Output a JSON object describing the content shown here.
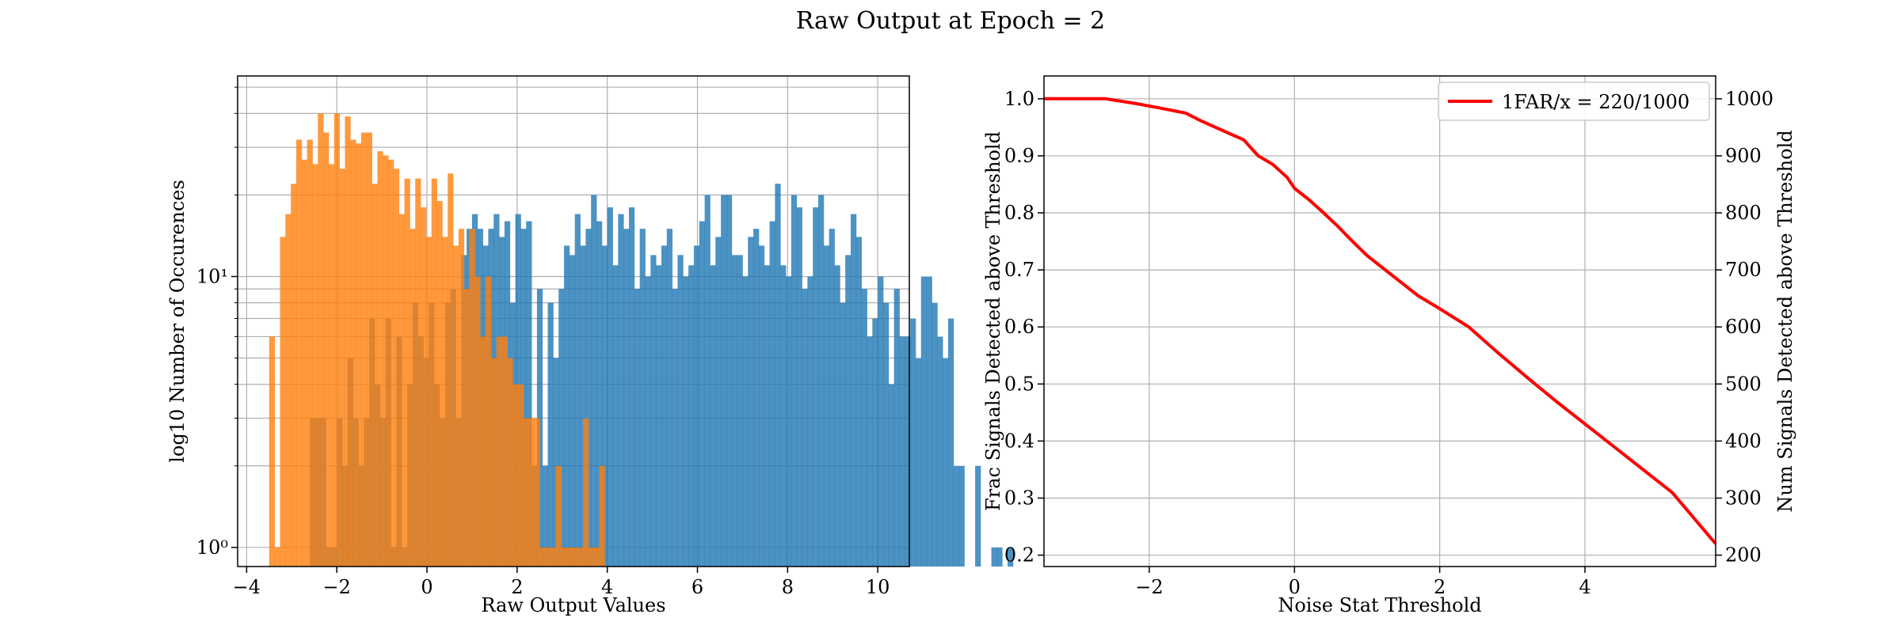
{
  "figure": {
    "title": "Raw Output at Epoch = 2"
  },
  "chart_data": [
    {
      "type": "histogram",
      "xlabel": "Raw Output Values",
      "ylabel": "log10 Number of Occurences",
      "xlim": [
        -4.2,
        10.7
      ],
      "ylim": [
        0.85,
        55
      ],
      "yscale": "log",
      "grid": true,
      "xticks": [
        -4,
        -2,
        0,
        2,
        4,
        6,
        8,
        10
      ],
      "yticks": [
        1,
        10
      ],
      "yticklabels": [
        "10⁰",
        "10¹"
      ],
      "bin_width": 0.12,
      "series": [
        {
          "name": "blue",
          "color": "#1f77b4",
          "start": -2.6,
          "counts": [
            3,
            3,
            3,
            1,
            1,
            3,
            2,
            5,
            3,
            2,
            3,
            7,
            4,
            3,
            7,
            1,
            6,
            1,
            4,
            8,
            6,
            5,
            8,
            4,
            3,
            8,
            9,
            3,
            12,
            15,
            17,
            15,
            13,
            15,
            17,
            14,
            16,
            8,
            17,
            15,
            16,
            2,
            9,
            2,
            8,
            5,
            9,
            13,
            12,
            17,
            13,
            15,
            20,
            16,
            13,
            18,
            11,
            17,
            15,
            18,
            9,
            15,
            10,
            12,
            11,
            13,
            15,
            9,
            12,
            10,
            11,
            13,
            16,
            20,
            11,
            14,
            20,
            20,
            12,
            12,
            10,
            14,
            15,
            13,
            11,
            16,
            22,
            11,
            10,
            20,
            18,
            9,
            10,
            18,
            20,
            13,
            15,
            11,
            8,
            12,
            17,
            14,
            9,
            6,
            7,
            10,
            8,
            4,
            9,
            6,
            6,
            7,
            5,
            10,
            10,
            8,
            6,
            5,
            7,
            2,
            2,
            0,
            0,
            2,
            0,
            0,
            1,
            1,
            0,
            1
          ]
        },
        {
          "name": "orange",
          "color": "#ff7f0e",
          "start": -3.5,
          "counts": [
            6,
            1,
            14,
            17,
            22,
            32,
            27,
            32,
            26,
            40,
            34,
            26,
            40,
            25,
            39,
            32,
            31,
            34,
            34,
            22,
            29,
            28,
            27,
            25,
            17,
            23,
            15,
            23,
            18,
            14,
            23,
            19,
            14,
            24,
            13,
            15,
            9,
            15,
            10,
            6,
            10,
            5,
            6,
            6,
            5,
            4,
            4,
            3,
            3,
            3,
            1,
            1,
            1,
            2,
            1,
            1,
            1,
            1,
            3,
            1,
            1,
            2
          ]
        }
      ]
    },
    {
      "type": "line",
      "xlabel": "Noise Stat Threshold",
      "ylabel": "Frac Signals Detected above Threshold",
      "y2label": "Num Signals Detected above Threshold",
      "xlim": [
        -3.45,
        5.8
      ],
      "ylim": [
        0.18,
        1.04
      ],
      "y2lim": [
        180,
        1040
      ],
      "grid": true,
      "legend_position": "top-right",
      "xticks": [
        -2,
        0,
        2,
        4
      ],
      "yticks": [
        0.2,
        0.3,
        0.4,
        0.5,
        0.6,
        0.7,
        0.8,
        0.9,
        1.0
      ],
      "y2ticks": [
        200,
        300,
        400,
        500,
        600,
        700,
        800,
        900,
        1000
      ],
      "series": [
        {
          "name": "1FAR/x = 220/1000",
          "color": "#ff0000",
          "x": [
            -3.45,
            -2.6,
            -2.2,
            -1.9,
            -1.5,
            -1.3,
            -1.0,
            -0.7,
            -0.5,
            -0.3,
            -0.1,
            0.0,
            0.2,
            0.4,
            0.6,
            0.8,
            1.0,
            1.2,
            1.4,
            1.7,
            2.0,
            2.4,
            2.8,
            3.2,
            3.6,
            4.0,
            4.4,
            4.8,
            5.2,
            5.8
          ],
          "y": [
            1.0,
            1.0,
            0.992,
            0.985,
            0.975,
            0.962,
            0.945,
            0.928,
            0.9,
            0.885,
            0.862,
            0.843,
            0.823,
            0.8,
            0.776,
            0.75,
            0.725,
            0.705,
            0.685,
            0.655,
            0.632,
            0.6,
            0.555,
            0.512,
            0.47,
            0.43,
            0.39,
            0.35,
            0.31,
            0.22
          ]
        }
      ]
    }
  ]
}
